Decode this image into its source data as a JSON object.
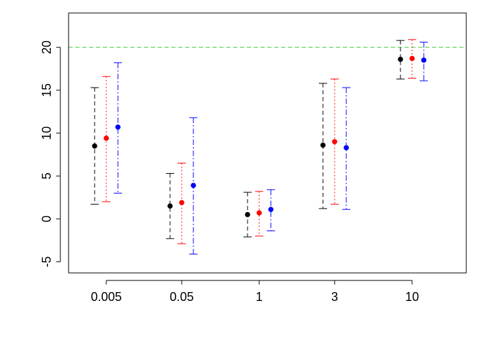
{
  "chart_data": {
    "type": "scatter",
    "title": "",
    "xlabel": "",
    "ylabel": "",
    "categories": [
      "0.005",
      "0.05",
      "1",
      "3",
      "10"
    ],
    "ylim": [
      -6.3,
      24.0
    ],
    "yticks": [
      -5,
      0,
      5,
      10,
      15,
      20
    ],
    "reference_line": {
      "y": 20,
      "color": "#33cc33",
      "style": "dashed"
    },
    "grid": false,
    "legend": "none",
    "series": [
      {
        "color": "#000000",
        "line_style": "dashed",
        "values": [
          8.5,
          1.5,
          0.5,
          8.6,
          18.6
        ],
        "lower": [
          1.7,
          -2.3,
          -2.1,
          1.2,
          16.3
        ],
        "upper": [
          15.3,
          5.3,
          3.1,
          15.8,
          20.8
        ]
      },
      {
        "color": "#ff0000",
        "line_style": "dotted",
        "values": [
          9.4,
          1.9,
          0.7,
          9.0,
          18.7
        ],
        "lower": [
          2.0,
          -2.9,
          -2.0,
          1.7,
          16.4
        ],
        "upper": [
          16.6,
          6.5,
          3.2,
          16.3,
          20.9
        ]
      },
      {
        "color": "#0000ff",
        "line_style": "dashdot",
        "values": [
          10.7,
          3.9,
          1.1,
          8.3,
          18.5
        ],
        "lower": [
          3.0,
          -4.1,
          -1.4,
          1.1,
          16.1
        ],
        "upper": [
          18.2,
          11.8,
          3.4,
          15.3,
          20.6
        ]
      }
    ]
  }
}
